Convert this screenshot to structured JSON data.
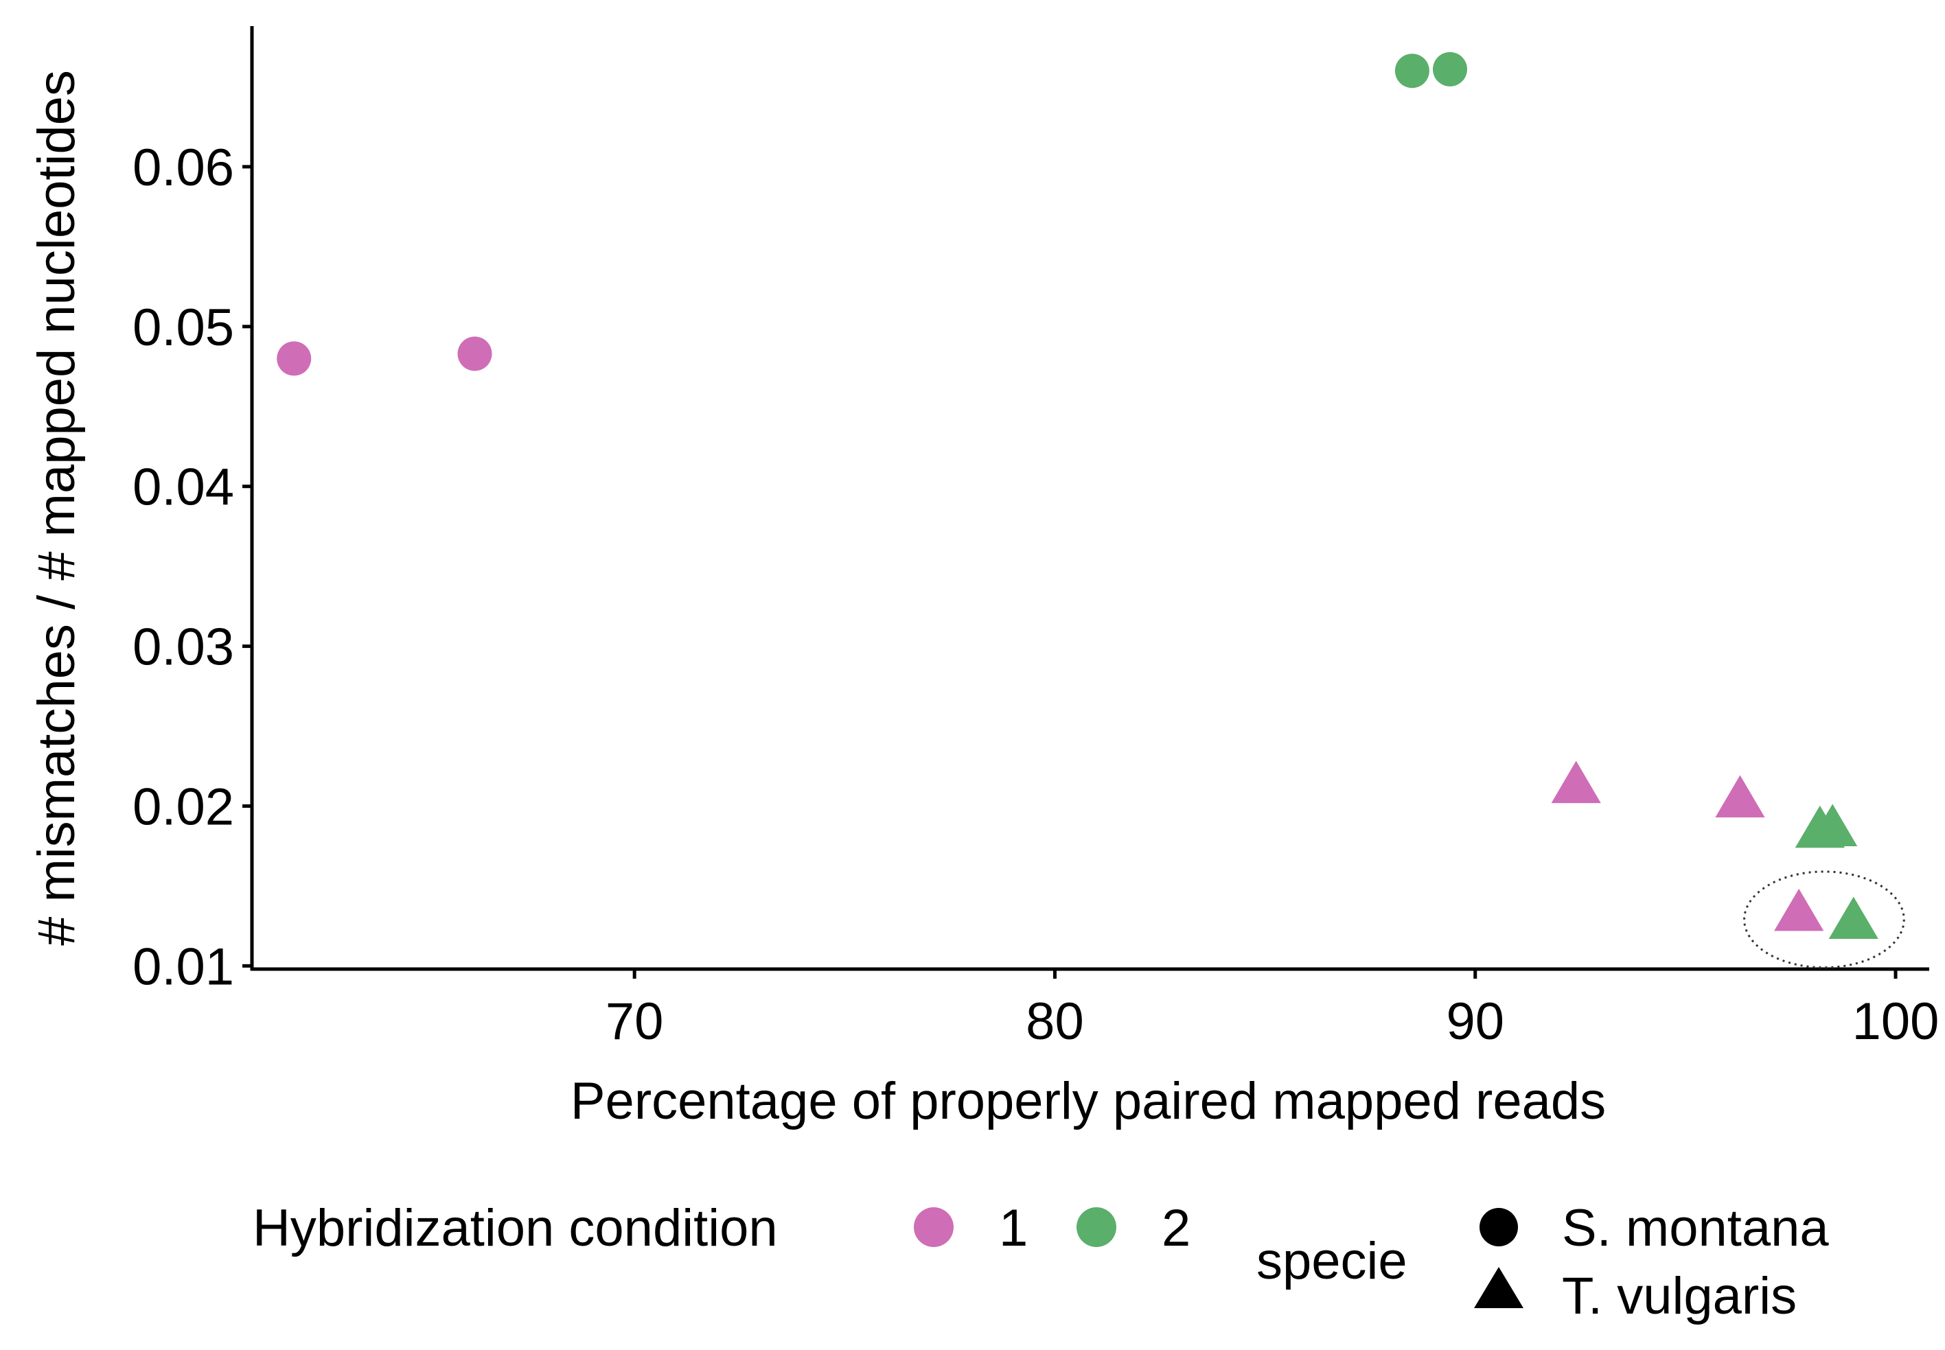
{
  "chart_data": {
    "type": "scatter",
    "title": "",
    "xlabel": "Percentage of properly paired mapped reads",
    "ylabel": "# mismatches / # mapped nucleotides",
    "xlim": [
      60.9,
      100.8
    ],
    "ylim": [
      0.0098,
      0.0688
    ],
    "xticks": [
      70,
      80,
      90,
      100
    ],
    "xtick_labels": [
      "70",
      "80",
      "90",
      "100"
    ],
    "yticks": [
      0.01,
      0.02,
      0.03,
      0.04,
      0.05,
      0.06
    ],
    "ytick_labels": [
      "0.01",
      "0.02",
      "0.03",
      "0.04",
      "0.05",
      "0.06"
    ],
    "grid": false,
    "legend_position": "bottom",
    "colors": {
      "1": "#cf6db7",
      "2": "#5aaf6a"
    },
    "points": [
      {
        "x": 61.9,
        "y": 0.048,
        "condition": "1",
        "specie": "S. montana"
      },
      {
        "x": 66.2,
        "y": 0.0483,
        "condition": "1",
        "specie": "S. montana"
      },
      {
        "x": 88.5,
        "y": 0.066,
        "condition": "2",
        "specie": "S. montana"
      },
      {
        "x": 89.4,
        "y": 0.0661,
        "condition": "2",
        "specie": "S. montana"
      },
      {
        "x": 92.4,
        "y": 0.0212,
        "condition": "1",
        "specie": "T. vulgaris"
      },
      {
        "x": 96.3,
        "y": 0.0203,
        "condition": "1",
        "specie": "T. vulgaris"
      },
      {
        "x": 98.2,
        "y": 0.0184,
        "condition": "2",
        "specie": "T. vulgaris"
      },
      {
        "x": 98.5,
        "y": 0.0185,
        "condition": "2",
        "specie": "T. vulgaris"
      },
      {
        "x": 97.7,
        "y": 0.0132,
        "condition": "1",
        "specie": "T. vulgaris"
      },
      {
        "x": 99.0,
        "y": 0.0127,
        "condition": "2",
        "specie": "T. vulgaris"
      }
    ],
    "annotation": {
      "type": "dotted-ellipse",
      "x_center": 98.3,
      "y_center": 0.0129,
      "x_radius": 1.9,
      "y_radius": 0.003
    },
    "legend": {
      "color_title": "Hybridization condition",
      "color_entries": [
        "1",
        "2"
      ],
      "shape_title": "specie",
      "shape_entries": [
        "S. montana",
        "T. vulgaris"
      ]
    }
  }
}
